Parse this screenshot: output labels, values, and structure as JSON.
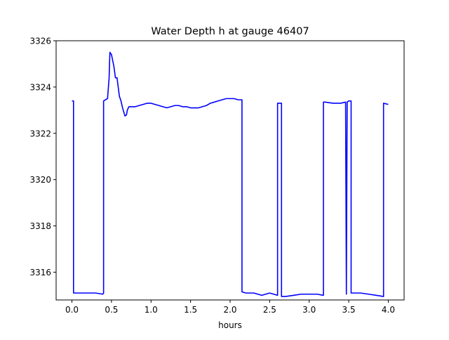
{
  "chart_data": {
    "type": "line",
    "title": "Water Depth h at gauge 46407",
    "xlabel": "hours",
    "ylabel": "",
    "xlim": [
      -0.2,
      4.2
    ],
    "ylim": [
      3314.8,
      3326.0
    ],
    "xticks": [
      0.0,
      0.5,
      1.0,
      1.5,
      2.0,
      2.5,
      3.0,
      3.5,
      4.0
    ],
    "xtick_labels": [
      "0.0",
      "0.5",
      "1.0",
      "1.5",
      "2.0",
      "2.5",
      "3.0",
      "3.5",
      "4.0"
    ],
    "yticks": [
      3316,
      3318,
      3320,
      3322,
      3324,
      3326
    ],
    "ytick_labels": [
      "3316",
      "3318",
      "3320",
      "3322",
      "3324",
      "3326"
    ],
    "grid": false,
    "line_color": "#0000ff",
    "series": [
      {
        "x": [
          0.0,
          0.02,
          0.02,
          0.1,
          0.2,
          0.3,
          0.39,
          0.4,
          0.4,
          0.45,
          0.47,
          0.48,
          0.5,
          0.53,
          0.55,
          0.57,
          0.6,
          0.62,
          0.64,
          0.67,
          0.69,
          0.7,
          0.72,
          0.75,
          0.8,
          0.85,
          0.9,
          0.95,
          1.0,
          1.05,
          1.1,
          1.15,
          1.2,
          1.25,
          1.3,
          1.35,
          1.4,
          1.45,
          1.5,
          1.55,
          1.6,
          1.65,
          1.7,
          1.75,
          1.8,
          1.85,
          1.9,
          1.95,
          2.0,
          2.05,
          2.1,
          2.15,
          2.15,
          2.2,
          2.3,
          2.4,
          2.45,
          2.5,
          2.55,
          2.6,
          2.6,
          2.65,
          2.65,
          2.7,
          2.8,
          2.9,
          3.0,
          3.1,
          3.18,
          3.18,
          3.2,
          3.3,
          3.4,
          3.46,
          3.47,
          3.48,
          3.5,
          3.53,
          3.53,
          3.56,
          3.56,
          3.65,
          3.75,
          3.85,
          3.94,
          3.94,
          4.0
        ],
        "y": [
          3323.4,
          3323.4,
          3315.1,
          3315.1,
          3315.1,
          3315.1,
          3315.05,
          3315.1,
          3323.4,
          3323.5,
          3324.4,
          3325.5,
          3325.4,
          3324.9,
          3324.4,
          3324.4,
          3323.6,
          3323.4,
          3323.1,
          3322.75,
          3322.8,
          3323.0,
          3323.15,
          3323.15,
          3323.15,
          3323.2,
          3323.25,
          3323.3,
          3323.3,
          3323.25,
          3323.2,
          3323.15,
          3323.1,
          3323.15,
          3323.2,
          3323.2,
          3323.15,
          3323.15,
          3323.1,
          3323.1,
          3323.1,
          3323.15,
          3323.2,
          3323.3,
          3323.35,
          3323.4,
          3323.45,
          3323.5,
          3323.5,
          3323.5,
          3323.45,
          3323.45,
          3315.15,
          3315.1,
          3315.1,
          3315.0,
          3315.05,
          3315.1,
          3315.05,
          3315.0,
          3323.3,
          3323.3,
          3314.95,
          3314.95,
          3315.0,
          3315.05,
          3315.05,
          3315.05,
          3315.0,
          3323.35,
          3323.35,
          3323.3,
          3323.3,
          3323.35,
          3315.05,
          3323.35,
          3323.4,
          3323.4,
          3315.1,
          3315.1,
          3315.1,
          3315.1,
          3315.05,
          3315.0,
          3314.95,
          3323.3,
          3323.25
        ]
      }
    ]
  }
}
